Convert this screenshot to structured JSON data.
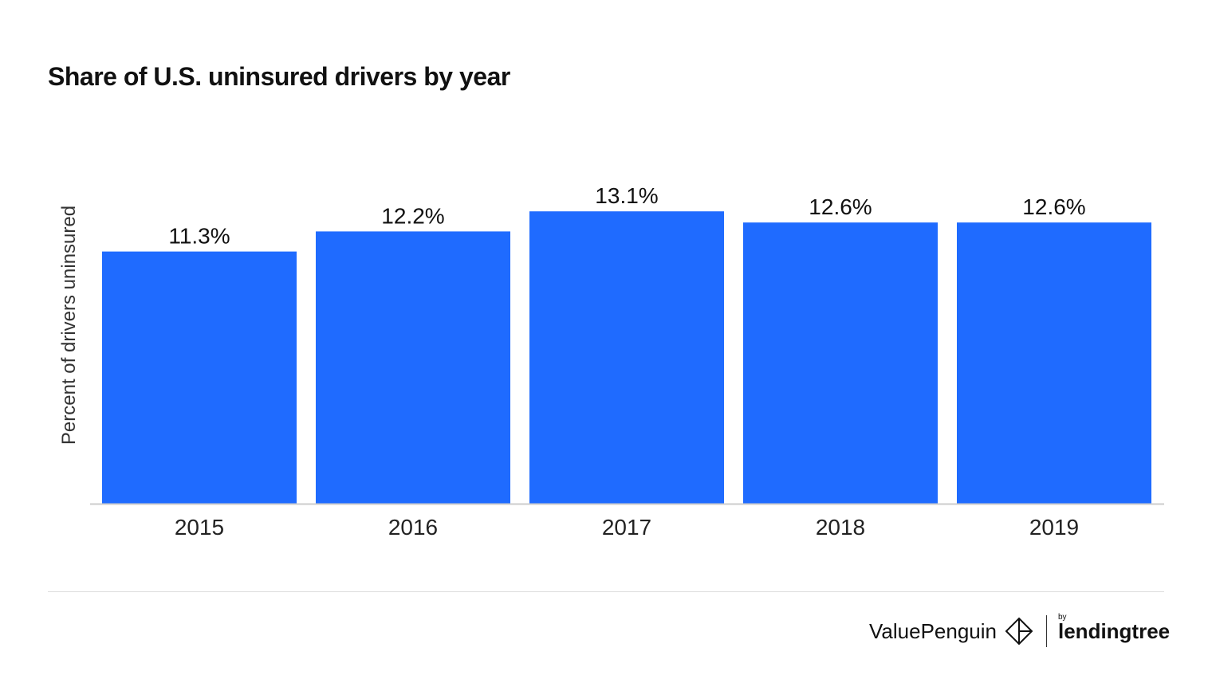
{
  "chart_data": {
    "type": "bar",
    "title": "Share of U.S. uninsured drivers by year",
    "xlabel": "",
    "ylabel": "Percent of drivers uninsured",
    "categories": [
      "2015",
      "2016",
      "2017",
      "2018",
      "2019"
    ],
    "values": [
      11.3,
      12.2,
      13.1,
      12.6,
      12.6
    ],
    "data_labels": [
      "11.3%",
      "12.2%",
      "13.1%",
      "12.6%",
      "12.6%"
    ],
    "ylim": [
      0,
      15
    ],
    "grid": false,
    "bar_color": "#1f6bff"
  },
  "footer": {
    "brand": "ValuePenguin",
    "by": "by",
    "partner": "lendingtree"
  }
}
